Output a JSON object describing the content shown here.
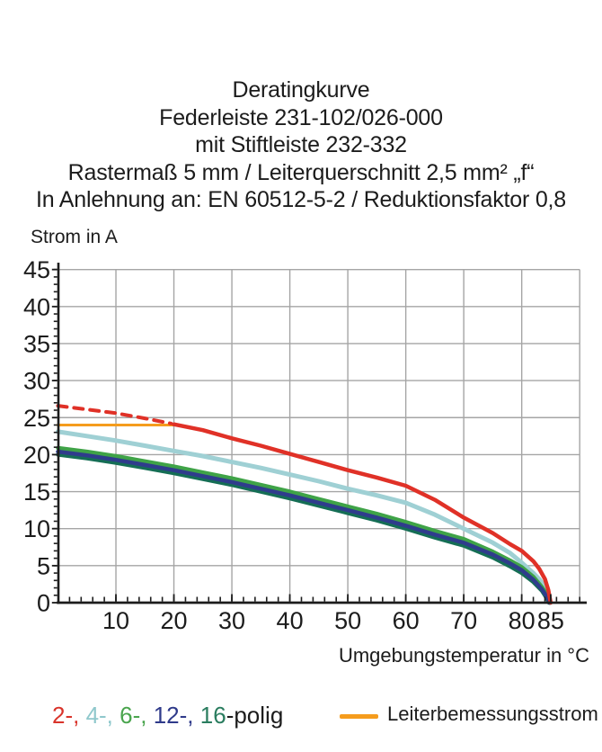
{
  "title_block": {
    "lines": [
      "Deratingkurve",
      "Federleiste 231-102/026-000",
      "mit Stiftleiste 232-332",
      "Rastermaß 5 mm / Leiterquerschnitt 2,5 mm² „f“",
      "In Anlehnung an: EN 60512-5-2 / Reduktionsfaktor 0,8"
    ]
  },
  "axis_titles": {
    "y": "Strom in A",
    "x": "Umgebungstemperatur in °C"
  },
  "legend": {
    "poles_segments": [
      {
        "text": "2-,",
        "color": "#d9342b"
      },
      {
        "text": " 4-,",
        "color": "#8fc8cc"
      },
      {
        "text": " 6-,",
        "color": "#4aa54e"
      },
      {
        "text": " 12-,",
        "color": "#2f3a8a"
      },
      {
        "text": " 16",
        "color": "#2a7d5f"
      },
      {
        "text": "-polig",
        "color": "#1c1c1c"
      }
    ],
    "rated_label": "Leiterbemessungsstrom",
    "rated_color": "#f59c1d"
  },
  "chart_data": {
    "type": "line",
    "title": "Deratingkurve",
    "xlabel": "Umgebungstemperatur in °C",
    "ylabel": "Strom in A",
    "xlim": [
      0,
      90
    ],
    "ylim": [
      0,
      45
    ],
    "grid": true,
    "grid_color": "#a5a5a5",
    "axis_color": "#1c1c1c",
    "x_major_ticks": [
      10,
      20,
      30,
      40,
      50,
      60,
      70,
      80,
      85
    ],
    "x_gridlines": [
      10,
      20,
      30,
      40,
      50,
      60,
      70,
      80,
      90
    ],
    "y_major_ticks": [
      0,
      5,
      10,
      15,
      20,
      25,
      30,
      35,
      40,
      45
    ],
    "x_minor_step": 2,
    "y_minor_step": 1,
    "series": [
      {
        "name": "Leiterbemessungsstrom",
        "color": "#f59c1d",
        "width": 3,
        "dash": null,
        "points": [
          [
            0,
            24
          ],
          [
            21,
            24
          ]
        ]
      },
      {
        "name": "4-polig",
        "color": "#9fd0d4",
        "width": 5,
        "dash": null,
        "points": [
          [
            0,
            23.1
          ],
          [
            5,
            22.5
          ],
          [
            10,
            21.9
          ],
          [
            15,
            21.2
          ],
          [
            20,
            20.5
          ],
          [
            25,
            19.8
          ],
          [
            30,
            19.0
          ],
          [
            35,
            18.2
          ],
          [
            40,
            17.3
          ],
          [
            45,
            16.4
          ],
          [
            50,
            15.4
          ],
          [
            55,
            14.5
          ],
          [
            60,
            13.5
          ],
          [
            65,
            11.9
          ],
          [
            70,
            10.0
          ],
          [
            75,
            8.1
          ],
          [
            78,
            6.7
          ],
          [
            80,
            5.4
          ],
          [
            82,
            4.0
          ],
          [
            83,
            3.2
          ],
          [
            84,
            2.2
          ],
          [
            84.7,
            0.9
          ],
          [
            84.9,
            0
          ]
        ]
      },
      {
        "name": "6-polig",
        "color": "#3fa347",
        "width": 4.5,
        "dash": null,
        "points": [
          [
            0,
            20.9
          ],
          [
            5,
            20.4
          ],
          [
            10,
            19.8
          ],
          [
            15,
            19.1
          ],
          [
            20,
            18.4
          ],
          [
            25,
            17.6
          ],
          [
            30,
            16.8
          ],
          [
            35,
            15.9
          ],
          [
            40,
            15.0
          ],
          [
            45,
            14.0
          ],
          [
            50,
            13.0
          ],
          [
            55,
            12.0
          ],
          [
            60,
            10.9
          ],
          [
            65,
            9.7
          ],
          [
            70,
            8.6
          ],
          [
            75,
            6.9
          ],
          [
            78,
            5.7
          ],
          [
            80,
            4.8
          ],
          [
            82,
            3.5
          ],
          [
            83.5,
            2.1
          ],
          [
            84.6,
            0.8
          ],
          [
            84.85,
            0
          ]
        ]
      },
      {
        "name": "16-polig",
        "color": "#156e55",
        "width": 4.5,
        "dash": null,
        "points": [
          [
            0,
            20.0
          ],
          [
            5,
            19.5
          ],
          [
            10,
            18.9
          ],
          [
            15,
            18.2
          ],
          [
            20,
            17.5
          ],
          [
            25,
            16.7
          ],
          [
            30,
            15.9
          ],
          [
            35,
            15.0
          ],
          [
            40,
            14.1
          ],
          [
            45,
            13.1
          ],
          [
            50,
            12.1
          ],
          [
            55,
            11.1
          ],
          [
            60,
            10.0
          ],
          [
            65,
            8.8
          ],
          [
            70,
            7.7
          ],
          [
            75,
            6.1
          ],
          [
            78,
            4.9
          ],
          [
            80,
            4.0
          ],
          [
            82,
            2.8
          ],
          [
            83.5,
            1.6
          ],
          [
            84.4,
            0.5
          ],
          [
            84.7,
            0
          ]
        ]
      },
      {
        "name": "12-polig",
        "color": "#2f3c8c",
        "width": 4.5,
        "dash": null,
        "points": [
          [
            0,
            20.4
          ],
          [
            5,
            19.9
          ],
          [
            10,
            19.3
          ],
          [
            15,
            18.6
          ],
          [
            20,
            17.9
          ],
          [
            25,
            17.1
          ],
          [
            30,
            16.3
          ],
          [
            35,
            15.4
          ],
          [
            40,
            14.5
          ],
          [
            45,
            13.5
          ],
          [
            50,
            12.5
          ],
          [
            55,
            11.5
          ],
          [
            60,
            10.4
          ],
          [
            65,
            9.2
          ],
          [
            70,
            8.1
          ],
          [
            75,
            6.5
          ],
          [
            78,
            5.3
          ],
          [
            80,
            4.4
          ],
          [
            82,
            3.1
          ],
          [
            83.5,
            1.8
          ],
          [
            84.5,
            0.6
          ],
          [
            84.8,
            0
          ]
        ]
      },
      {
        "name": "2-polig (gestrichelt)",
        "color": "#e03127",
        "width": 4,
        "dash": "10 8",
        "points": [
          [
            0,
            26.6
          ],
          [
            5,
            26.1
          ],
          [
            10,
            25.6
          ],
          [
            15,
            24.9
          ],
          [
            19.5,
            24.2
          ]
        ]
      },
      {
        "name": "2-polig",
        "color": "#e03127",
        "width": 4.5,
        "dash": null,
        "points": [
          [
            20,
            24.1
          ],
          [
            25,
            23.3
          ],
          [
            30,
            22.2
          ],
          [
            35,
            21.2
          ],
          [
            40,
            20.1
          ],
          [
            45,
            19.0
          ],
          [
            50,
            17.9
          ],
          [
            55,
            16.9
          ],
          [
            60,
            15.8
          ],
          [
            65,
            13.9
          ],
          [
            70,
            11.5
          ],
          [
            75,
            9.4
          ],
          [
            78,
            7.9
          ],
          [
            80,
            7.0
          ],
          [
            82,
            5.6
          ],
          [
            83,
            4.6
          ],
          [
            84,
            3.2
          ],
          [
            84.6,
            1.7
          ],
          [
            85,
            0
          ]
        ]
      }
    ]
  }
}
